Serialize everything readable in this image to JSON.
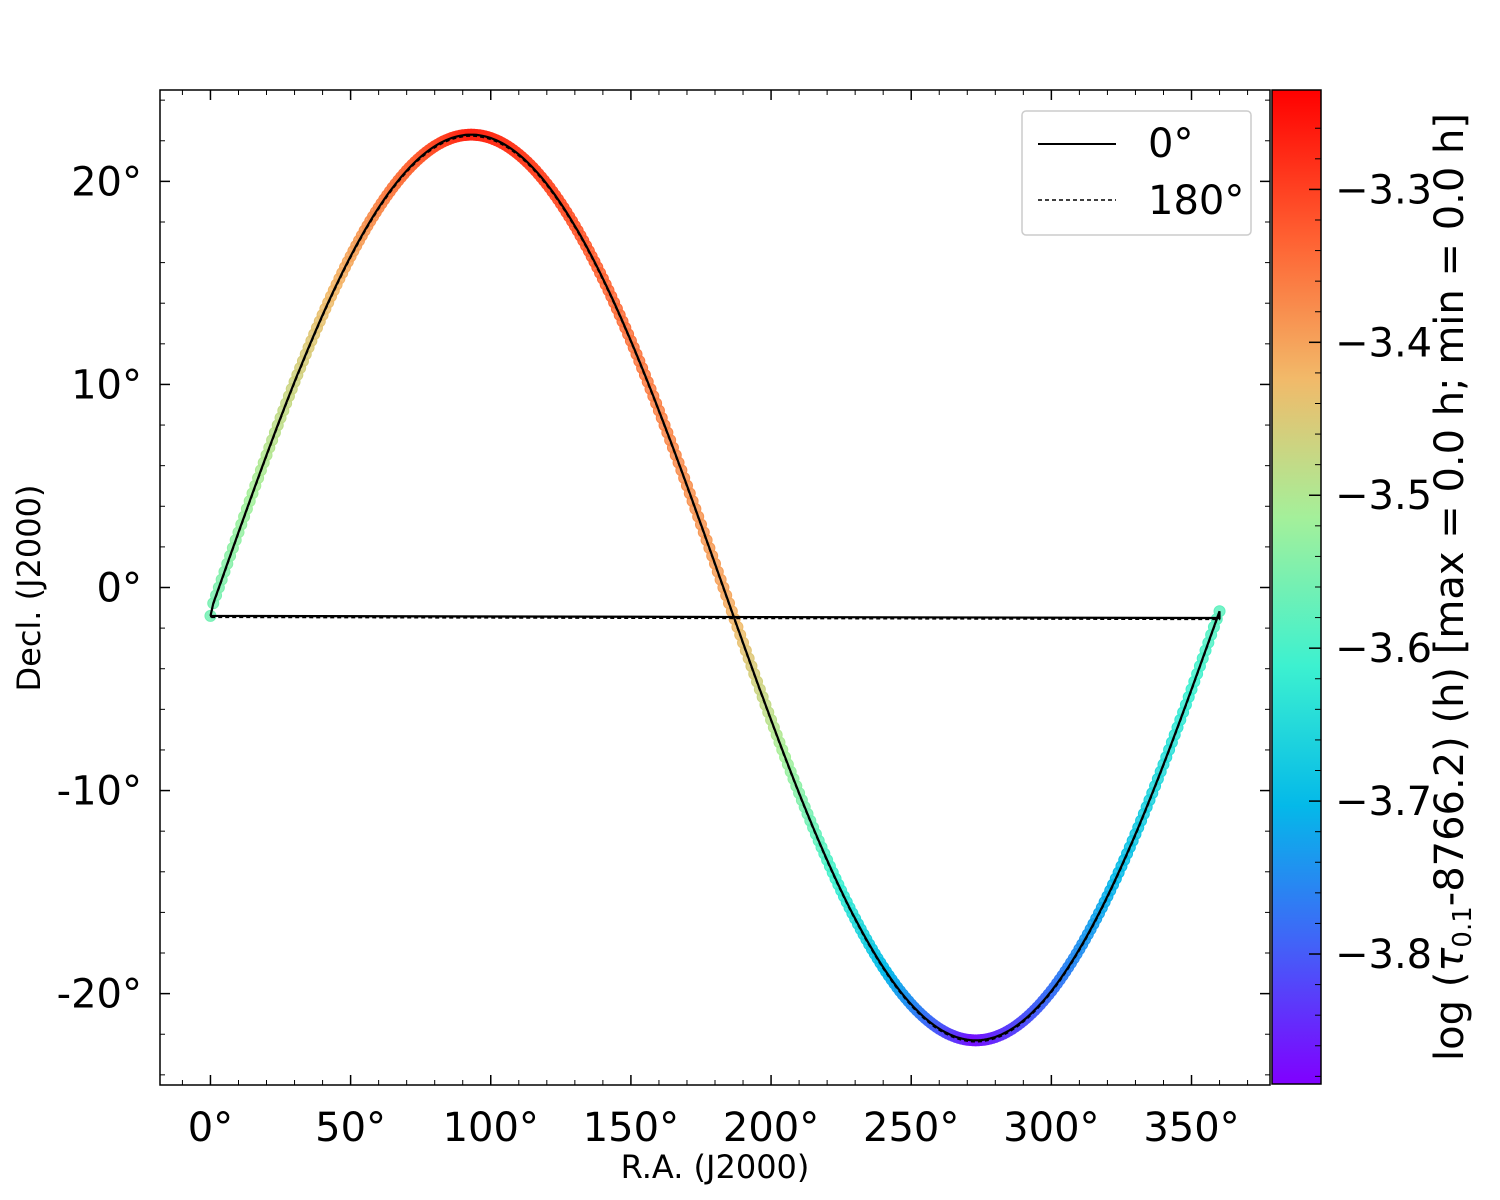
{
  "chart_data": {
    "type": "scatter",
    "xlabel": "R.A. (J2000)",
    "ylabel": "Decl. (J2000)",
    "xlim": [
      -18,
      378
    ],
    "ylim": [
      -24.5,
      24.5
    ],
    "x_ticks": [
      {
        "value": 0,
        "label": "0°"
      },
      {
        "value": 50,
        "label": "50°"
      },
      {
        "value": 100,
        "label": "100°"
      },
      {
        "value": 150,
        "label": "150°"
      },
      {
        "value": 200,
        "label": "200°"
      },
      {
        "value": 250,
        "label": "250°"
      },
      {
        "value": 300,
        "label": "300°"
      },
      {
        "value": 350,
        "label": "350°"
      }
    ],
    "y_ticks": [
      {
        "value": 20,
        "label": "20°"
      },
      {
        "value": 10,
        "label": "10°"
      },
      {
        "value": 0,
        "label": "0°"
      },
      {
        "value": -10,
        "label": "-10°"
      },
      {
        "value": -20,
        "label": "-20°"
      }
    ],
    "colorbar": {
      "label_parts": [
        "log (",
        "τ",
        "0.1",
        "-8766.2) (h) [max = 0.0 h; min = 0.0 h]"
      ],
      "range": [
        -3.885,
        -3.235
      ],
      "colormap": "rainbow",
      "ticks": [
        {
          "value": -3.3,
          "label": "−3.3"
        },
        {
          "value": -3.4,
          "label": "−3.4"
        },
        {
          "value": -3.5,
          "label": "−3.5"
        },
        {
          "value": -3.6,
          "label": "−3.6"
        },
        {
          "value": -3.7,
          "label": "−3.7"
        },
        {
          "value": -3.8,
          "label": "−3.8"
        }
      ]
    },
    "legend": {
      "position": "top-right",
      "entries": [
        {
          "label": "0°",
          "linestyle": "solid"
        },
        {
          "label": "180°",
          "linestyle": "dashed"
        }
      ]
    },
    "track": {
      "x_start": 0,
      "x_end": 360,
      "amplitude": 22.3,
      "peak_x": 93,
      "trough_x": 273,
      "start_y": -1.4,
      "end_y": -1.5,
      "color_value_start": -3.56,
      "color_value_peak": -3.27,
      "color_value_node": -3.4,
      "color_value_trough": -3.87,
      "color_value_end": -3.58,
      "sample_step": 2
    },
    "colors": {
      "line": "#000000",
      "axes": "#000000",
      "background": "#ffffff"
    }
  }
}
